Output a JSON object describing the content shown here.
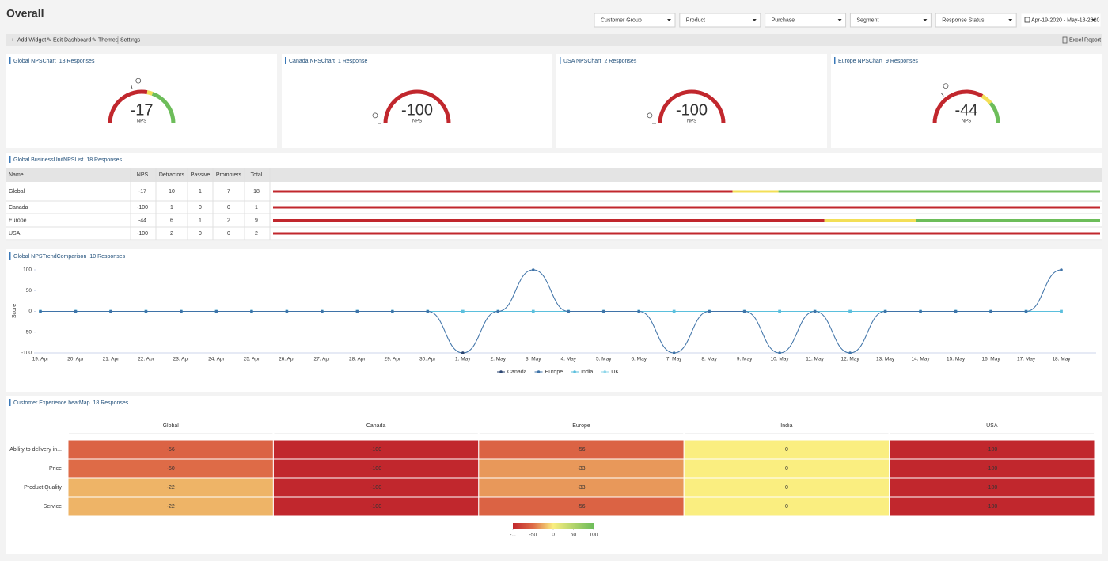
{
  "header": {
    "title": "Overall"
  },
  "filters": [
    "Customer Group",
    "Product",
    "Purchase",
    "Segment",
    "Response Status"
  ],
  "date_range": "Apr-19-2020 - May-18-2020",
  "toolbar": {
    "actions": [
      "Add Widget",
      "Edit Dashboard",
      "Themes",
      "Settings"
    ],
    "report": "Excel Report"
  },
  "colors": {
    "detractors": "#c1272d",
    "passive": "#f3df57",
    "promoters": "#6dbd5a"
  },
  "gauges": [
    {
      "title": "Global NPSChart",
      "responses": "18 Responses",
      "value": -17,
      "label": "NPS"
    },
    {
      "title": "Canada NPSChart",
      "responses": "1 Response",
      "value": -100,
      "label": "NPS"
    },
    {
      "title": "USA NPSChart",
      "responses": "2 Responses",
      "value": -100,
      "label": "NPS"
    },
    {
      "title": "Europe NPSChart",
      "responses": "9 Responses",
      "value": -44,
      "label": "NPS"
    }
  ],
  "table": {
    "title": "Global BusinessUnitNPSList",
    "responses": "18 Responses",
    "columns": [
      "Name",
      "NPS",
      "Detractors",
      "Passive",
      "Promoters",
      "Total"
    ],
    "rows": [
      [
        "Global",
        -17,
        10,
        1,
        7,
        18
      ],
      [
        "Canada",
        -100,
        1,
        0,
        0,
        1
      ],
      [
        "Europe",
        -44,
        6,
        1,
        2,
        9
      ],
      [
        "USA",
        -100,
        2,
        0,
        0,
        2
      ]
    ]
  },
  "trend": {
    "type": "line",
    "title": "Global NPSTrendComparison",
    "responses": "10 Responses",
    "y_label": "Score",
    "categories": [
      "19. Apr",
      "20. Apr",
      "21. Apr",
      "22. Apr",
      "23. Apr",
      "24. Apr",
      "25. Apr",
      "26. Apr",
      "27. Apr",
      "28. Apr",
      "29. Apr",
      "30. Apr",
      "1. May",
      "2. May",
      "3. May",
      "4. May",
      "5. May",
      "6. May",
      "7. May",
      "8. May",
      "9. May",
      "10. May",
      "11. May",
      "12. May",
      "13. May",
      "14. May",
      "15. May",
      "16. May",
      "17. May",
      "18. May"
    ],
    "ylim": [
      -100,
      100
    ],
    "yticks": [
      -100,
      -50,
      0,
      50,
      100
    ],
    "series": [
      {
        "name": "Canada",
        "color": "#2b4570",
        "values": [
          null,
          null,
          null,
          null,
          null,
          null,
          null,
          null,
          null,
          null,
          null,
          null,
          -100,
          null,
          null,
          null,
          null,
          null,
          null,
          null,
          null,
          null,
          null,
          null,
          null,
          null,
          null,
          null,
          null,
          null
        ]
      },
      {
        "name": "Europe",
        "color": "#3f73a8",
        "values": [
          0,
          0,
          0,
          0,
          0,
          0,
          0,
          0,
          0,
          0,
          0,
          0,
          -100,
          0,
          100,
          0,
          0,
          0,
          -100,
          0,
          0,
          -100,
          0,
          -100,
          0,
          0,
          0,
          0,
          0,
          100
        ]
      },
      {
        "name": "India",
        "color": "#5bbfdd",
        "values": [
          0,
          0,
          0,
          0,
          0,
          0,
          0,
          0,
          0,
          0,
          0,
          0,
          0,
          0,
          0,
          0,
          0,
          0,
          0,
          0,
          0,
          0,
          0,
          0,
          0,
          0,
          0,
          0,
          0,
          0
        ]
      },
      {
        "name": "UK",
        "color": "#8ed6ea",
        "values": [
          0,
          0,
          0,
          0,
          0,
          0,
          0,
          0,
          0,
          0,
          0,
          0,
          0,
          0,
          0,
          0,
          0,
          0,
          0,
          0,
          0,
          0,
          0,
          0,
          0,
          0,
          0,
          0,
          0,
          0
        ]
      }
    ]
  },
  "heatmap": {
    "type": "heatmap",
    "title": "Customer Experience heatMap",
    "responses": "18 Responses",
    "columns": [
      "Global",
      "Canada",
      "Europe",
      "India",
      "USA"
    ],
    "rows": [
      "Ability to delivery in...",
      "Price",
      "Product Quality",
      "Service"
    ],
    "values": [
      [
        -56,
        -100,
        -56,
        0,
        -100
      ],
      [
        -50,
        -100,
        -33,
        0,
        -100
      ],
      [
        -22,
        -100,
        -33,
        0,
        -100
      ],
      [
        -22,
        -100,
        -56,
        0,
        -100
      ]
    ],
    "legend_ticks": [
      {
        "value": -100,
        "label": "-..."
      },
      -50,
      0,
      50,
      100
    ],
    "legend_colors": [
      "#c1272d",
      "#de6b47",
      "#faee80",
      "#b3d46c",
      "#6dbd5a"
    ]
  }
}
